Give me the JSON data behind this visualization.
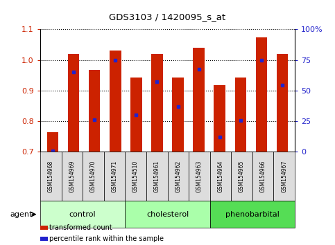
{
  "title": "GDS3103 / 1420095_s_at",
  "samples": [
    "GSM154968",
    "GSM154969",
    "GSM154970",
    "GSM154971",
    "GSM154510",
    "GSM154961",
    "GSM154962",
    "GSM154963",
    "GSM154964",
    "GSM154965",
    "GSM154966",
    "GSM154967"
  ],
  "groups": [
    {
      "name": "control",
      "color": "#ccffcc",
      "indices": [
        0,
        1,
        2,
        3
      ]
    },
    {
      "name": "cholesterol",
      "color": "#aaffaa",
      "indices": [
        4,
        5,
        6,
        7
      ]
    },
    {
      "name": "phenobarbital",
      "color": "#55dd55",
      "indices": [
        8,
        9,
        10,
        11
      ]
    }
  ],
  "transformed_count": [
    0.765,
    1.02,
    0.968,
    1.03,
    0.942,
    1.02,
    0.942,
    1.04,
    0.918,
    0.942,
    1.075,
    1.02
  ],
  "percentile_rank": [
    0.703,
    0.96,
    0.805,
    1.0,
    0.82,
    0.93,
    0.847,
    0.97,
    0.748,
    0.803,
    1.0,
    0.918
  ],
  "bar_bottom": 0.7,
  "ylim_left": [
    0.7,
    1.1
  ],
  "ylim_right": [
    0,
    100
  ],
  "yticks_left": [
    0.7,
    0.8,
    0.9,
    1.0,
    1.1
  ],
  "yticks_right": [
    0,
    25,
    50,
    75,
    100
  ],
  "ytick_labels_right": [
    "0",
    "25",
    "50",
    "75",
    "100%"
  ],
  "bar_color": "#cc2200",
  "marker_color": "#2222cc",
  "bar_width": 0.55,
  "agent_label": "agent",
  "legend_items": [
    {
      "label": "transformed count",
      "color": "#cc2200"
    },
    {
      "label": "percentile rank within the sample",
      "color": "#2222cc"
    }
  ],
  "tick_label_color_left": "#cc2200",
  "tick_label_color_right": "#2222cc",
  "sample_box_color": "#dddddd",
  "chart_bg": "#ffffff"
}
